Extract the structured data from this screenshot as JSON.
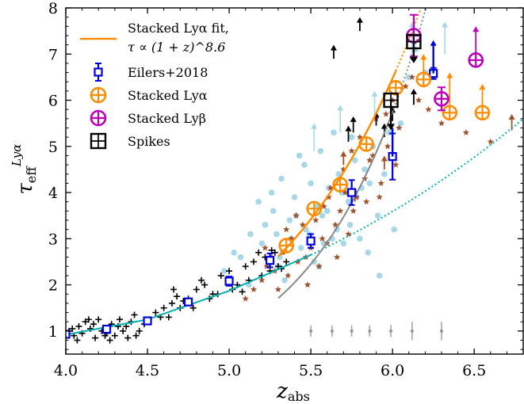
{
  "chart_data": {
    "type": "scatter",
    "xlabel": "z_abs",
    "ylabel": "τ_eff^Lyα",
    "xlim": [
      4.0,
      6.8
    ],
    "ylim": [
      0.5,
      8.0
    ],
    "xticks": [
      "4.0",
      "4.5",
      "5.0",
      "5.5",
      "6.0",
      "6.5"
    ],
    "yticks": [
      "1",
      "2",
      "3",
      "4",
      "5",
      "6",
      "7",
      "8"
    ],
    "grid": false,
    "legend_position": "top-left",
    "legend": [
      {
        "label": "Stacked Lyα fit,",
        "label2": "τ ∝ (1 + z)^8.6",
        "color": "#ff8c00",
        "marker": "line"
      },
      {
        "label": "Eilers+2018",
        "color": "#0000dd",
        "marker": "square-errorbar"
      },
      {
        "label": "Stacked Lyα",
        "color": "#ff8c00",
        "marker": "circle-plus"
      },
      {
        "label": "Stacked Lyβ",
        "color": "#bb00bb",
        "marker": "circle-plus"
      },
      {
        "label": "Spikes",
        "color": "#000000",
        "marker": "square-plus"
      }
    ],
    "colors": {
      "eilers": "#0000dd",
      "stacked_lya": "#ff8c00",
      "stacked_lyb": "#bb00bb",
      "spikes": "#000000",
      "low_z_fit": "#00b0b0",
      "gray_fit": "#888888",
      "stars": "#a0522d",
      "light_points": "#a8d8e8",
      "black_crosses": "#000000"
    },
    "series": [
      {
        "name": "Eilers+2018",
        "kind": "square",
        "x": [
          4.0,
          4.25,
          4.5,
          4.75,
          5.0,
          5.25,
          5.5,
          5.75,
          6.0,
          6.25
        ],
        "y": [
          0.93,
          1.04,
          1.22,
          1.63,
          2.08,
          2.53,
          2.95,
          4.0,
          4.78,
          6.58
        ],
        "yerr": [
          0.06,
          0.06,
          0.05,
          0.07,
          0.1,
          0.15,
          0.15,
          0.27,
          0.5,
          0.12
        ],
        "upper_x": [
          6.25
        ],
        "upper_top": [
          7.3
        ]
      },
      {
        "name": "Stacked Lyα",
        "kind": "circle",
        "x": [
          5.35,
          5.52,
          5.68,
          5.84,
          6.02,
          6.19,
          6.35,
          6.55
        ],
        "y": [
          2.85,
          3.65,
          4.17,
          5.05,
          6.27,
          6.45,
          5.73,
          5.73
        ],
        "lower_limit_x": [
          6.19,
          6.35,
          6.55
        ],
        "lower_limit_top": [
          7.0,
          6.6,
          6.35
        ]
      },
      {
        "name": "Stacked Lyβ",
        "kind": "circle",
        "x": [
          6.13,
          6.3,
          6.51
        ],
        "y": [
          7.4,
          6.03,
          6.87
        ],
        "yerr": [
          0.45,
          0.25,
          0.0
        ],
        "lower_limit_x": [
          6.51
        ],
        "lower_limit_top": [
          7.6
        ]
      },
      {
        "name": "Spikes",
        "kind": "square",
        "x": [
          5.99,
          6.13
        ],
        "y": [
          6.0,
          7.27
        ],
        "down_top": [
          6.0,
          7.27
        ],
        "down_bottom": [
          5.35,
          6.8
        ]
      }
    ],
    "fits": {
      "stacked_lya_exponent": 8.6,
      "low_z_line": {
        "x": [
          4.0,
          4.5,
          5.0,
          5.5
        ],
        "y": [
          0.92,
          1.25,
          1.87,
          2.65
        ]
      },
      "low_z_dotted": {
        "x": [
          5.5,
          6.0,
          6.5,
          6.85
        ],
        "y": [
          2.65,
          3.55,
          4.75,
          5.85
        ]
      }
    },
    "error_bar_reference": {
      "x": [
        5.5,
        5.63,
        5.75,
        5.86,
        5.99,
        6.12,
        6.3
      ],
      "center": [
        1.0,
        1.0,
        1.0,
        1.0,
        1.0,
        1.0,
        1.0
      ],
      "half_height": [
        0.12,
        0.12,
        0.12,
        0.12,
        0.13,
        0.2,
        0.2
      ]
    },
    "light_blue_points": {
      "x": [
        4.97,
        5.07,
        5.13,
        5.2,
        5.22,
        5.27,
        5.3,
        5.32,
        5.34,
        5.37,
        5.4,
        5.44,
        5.46,
        5.47,
        5.5,
        5.52,
        5.54,
        5.56,
        5.58,
        5.61,
        5.63,
        5.64,
        5.67,
        5.7,
        5.72,
        5.74,
        5.75,
        5.77,
        5.8,
        5.83,
        5.85,
        5.88,
        5.91,
        5.95,
        5.98,
        6.01,
        6.05,
        6.1,
        6.14,
        6.2,
        5.12,
        5.18,
        5.26,
        5.31,
        5.38,
        5.43,
        5.49,
        5.55,
        5.6,
        5.69,
        5.78,
        5.86,
        5.92,
        5.03,
        5.29,
        5.41,
        5.57,
        5.66,
        5.73,
        5.81
      ],
      "y": [
        2.3,
        2.6,
        3.1,
        2.9,
        3.3,
        3.6,
        2.4,
        4.3,
        2.1,
        3.4,
        3.9,
        2.8,
        4.6,
        3.2,
        4.2,
        2.5,
        3.7,
        4.9,
        2.9,
        4.1,
        3.0,
        5.3,
        4.4,
        2.9,
        4.0,
        3.3,
        5.2,
        4.7,
        3.0,
        4.5,
        2.7,
        5.0,
        3.5,
        4.4,
        5.3,
        3.2,
        5.5,
        6.5,
        7.1,
        6.6,
        2.0,
        3.8,
        4.0,
        2.6,
        3.0,
        4.8,
        3.1,
        2.4,
        3.6,
        4.0,
        3.9,
        4.2,
        2.2,
        2.7,
        3.1,
        3.5,
        3.5,
        3.2,
        3.8,
        4.1
      ]
    },
    "light_blue_arrows": {
      "x": [
        5.52,
        5.68,
        5.89,
        6.12,
        6.32
      ],
      "y": [
        4.9,
        5.3,
        5.7,
        7.0,
        7.0
      ],
      "top": [
        5.5,
        5.9,
        6.2,
        7.7,
        7.7
      ]
    },
    "brown_stars": {
      "x": [
        5.1,
        5.15,
        5.2,
        5.23,
        5.26,
        5.3,
        5.33,
        5.36,
        5.38,
        5.42,
        5.45,
        5.48,
        5.5,
        5.53,
        5.55,
        5.58,
        5.6,
        5.62,
        5.65,
        5.68,
        5.7,
        5.73,
        5.75,
        5.78,
        5.8,
        5.83,
        5.86,
        5.9,
        5.93,
        5.97,
        6.0,
        6.04,
        6.08,
        6.12,
        6.16,
        6.22,
        6.3,
        6.45,
        6.6,
        5.28,
        5.41,
        5.57,
        5.66,
        5.76,
        5.84,
        5.92,
        6.02,
        5.22,
        5.35,
        5.47,
        5.61,
        5.71,
        5.88,
        5.96
      ],
      "y": [
        1.7,
        1.9,
        2.1,
        2.4,
        2.6,
        1.9,
        2.7,
        2.2,
        3.0,
        2.5,
        3.3,
        2.0,
        2.8,
        3.4,
        2.4,
        3.7,
        2.9,
        4.1,
        3.3,
        3.6,
        4.5,
        3.1,
        4.9,
        3.9,
        5.2,
        4.3,
        4.7,
        5.6,
        4.2,
        5.0,
        6.0,
        5.4,
        6.3,
        6.5,
        6.0,
        5.8,
        5.5,
        5.3,
        5.1,
        2.3,
        3.5,
        3.0,
        2.6,
        3.6,
        3.8,
        3.9,
        4.6,
        2.8,
        3.2,
        2.6,
        3.9,
        4.0,
        4.8,
        5.7
      ]
    },
    "brown_arrows": {
      "x": [
        5.7,
        5.77,
        5.95,
        6.73
      ],
      "y": [
        4.6,
        3.8,
        4.5,
        5.35
      ],
      "top": [
        4.9,
        4.1,
        4.8,
        5.7
      ]
    },
    "black_crosses": {
      "x": [
        4.02,
        4.05,
        4.08,
        4.1,
        4.12,
        4.15,
        4.18,
        4.2,
        4.22,
        4.25,
        4.28,
        4.3,
        4.32,
        4.35,
        4.38,
        4.4,
        4.42,
        4.45,
        4.48,
        4.5,
        4.55,
        4.6,
        4.63,
        4.65,
        4.68,
        4.7,
        4.72,
        4.75,
        4.78,
        4.8,
        4.85,
        4.88,
        4.9,
        4.95,
        5.0,
        5.02,
        5.05,
        5.1,
        5.12,
        5.15,
        5.2,
        5.22,
        5.25,
        5.28,
        5.3,
        5.35,
        4.07,
        4.17,
        4.27,
        4.33,
        4.43,
        4.58,
        4.66,
        4.83,
        4.93,
        5.08,
        5.18,
        5.26,
        5.32,
        4.04,
        4.14,
        4.24,
        4.37
      ],
      "y": [
        1.0,
        0.9,
        1.1,
        0.95,
        1.2,
        1.05,
        0.85,
        1.25,
        1.0,
        0.95,
        1.15,
        0.9,
        1.1,
        1.0,
        0.85,
        1.2,
        1.35,
        1.0,
        1.15,
        1.2,
        1.4,
        1.5,
        1.3,
        1.6,
        1.75,
        1.5,
        1.65,
        1.7,
        1.5,
        1.9,
        2.0,
        1.7,
        1.8,
        2.2,
        2.3,
        1.9,
        2.0,
        2.4,
        2.1,
        2.5,
        2.2,
        2.6,
        2.3,
        2.7,
        2.4,
        2.5,
        0.8,
        1.15,
        0.8,
        1.25,
        0.9,
        1.3,
        1.9,
        2.1,
        1.8,
        1.85,
        2.7,
        2.75,
        2.35,
        1.05,
        1.25,
        0.9,
        1.1
      ]
    },
    "black_arrows": {
      "x": [
        5.64,
        5.73,
        5.76,
        5.8,
        5.9,
        5.95,
        6.0,
        6.13
      ],
      "y": [
        6.9,
        5.1,
        5.3,
        7.5,
        5.45,
        5.2,
        5.55,
        5.9
      ],
      "top": [
        7.2,
        5.45,
        5.65,
        7.8,
        5.75,
        5.5,
        5.85,
        6.25
      ]
    }
  }
}
